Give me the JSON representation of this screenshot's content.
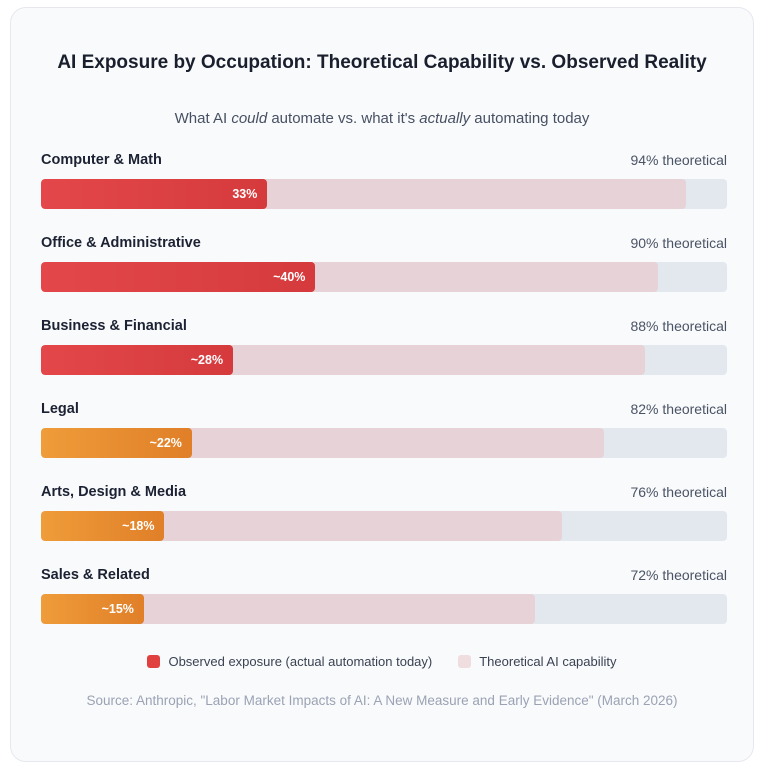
{
  "chart_data": {
    "type": "bar",
    "orientation": "horizontal",
    "title": "AI Exposure by Occupation: Theoretical Capability vs. Observed Reality",
    "subtitle": {
      "p1": "What AI ",
      "em1": "could",
      "p2": " automate vs. what it's ",
      "em2": "actually",
      "p3": " automating today"
    },
    "xlim": [
      0,
      100
    ],
    "categories": [
      "Computer & Math",
      "Office & Administrative",
      "Business & Financial",
      "Legal",
      "Arts, Design & Media",
      "Sales & Related"
    ],
    "series": [
      {
        "name": "Observed exposure (actual automation today)",
        "values": [
          33,
          40,
          28,
          22,
          18,
          15
        ]
      },
      {
        "name": "Theoretical AI capability",
        "values": [
          94,
          90,
          88,
          82,
          76,
          72
        ]
      }
    ],
    "observed_labels": [
      "33%",
      "~40%",
      "~28%",
      "~22%",
      "~18%",
      "~15%"
    ],
    "theoretical_labels": [
      "94% theoretical",
      "90% theoretical",
      "88% theoretical",
      "82% theoretical",
      "76% theoretical",
      "72% theoretical"
    ],
    "observed_colors": [
      "red",
      "red",
      "red",
      "orange",
      "orange",
      "orange"
    ],
    "colors": {
      "observed_red": "#e0413f",
      "observed_orange": "#e8892e",
      "theoretical": "#e6d2d7",
      "track": "#e3e8ef"
    },
    "legend": [
      "Observed exposure (actual automation today)",
      "Theoretical AI capability"
    ],
    "legend_placement": "bottom-center",
    "grid": false
  },
  "source": "Source: Anthropic, \"Labor Market Impacts of AI: A New Measure and Early Evidence\" (March 2026)"
}
